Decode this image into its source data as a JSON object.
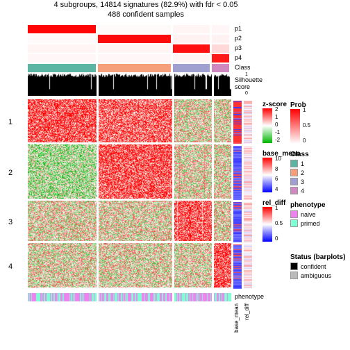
{
  "title_line1": "4 subgroups, 14814 signatures (82.9%) with fdr < 0.05",
  "title_line2": "488 confident samples",
  "title_fontsize": 11,
  "heatmap": {
    "type": "heatmap",
    "row_groups": [
      1,
      2,
      3,
      4
    ],
    "row_group_heights": [
      62,
      78,
      58,
      64
    ],
    "col_groups": [
      1,
      2,
      3,
      4
    ],
    "col_group_widths": [
      99,
      106,
      54,
      25
    ],
    "gap": 3,
    "zscore_colors": {
      "low": "#00b400",
      "mid": "#ffffff",
      "high": "#ff0000",
      "range": [
        -2,
        2
      ]
    }
  },
  "top_annotations": [
    {
      "name": "p1",
      "label": "p1",
      "type": "prob",
      "values_by_group": [
        0.98,
        0.02,
        0.04,
        0.03
      ]
    },
    {
      "name": "p2",
      "label": "p2",
      "type": "prob",
      "values_by_group": [
        0.02,
        0.96,
        0.05,
        0.05
      ]
    },
    {
      "name": "p3",
      "label": "p3",
      "type": "prob",
      "values_by_group": [
        0.04,
        0.04,
        0.94,
        0.15
      ]
    },
    {
      "name": "p4",
      "label": "p4",
      "type": "prob",
      "values_by_group": [
        0.03,
        0.03,
        0.04,
        0.9
      ]
    },
    {
      "name": "Class",
      "label": "Class",
      "type": "class"
    },
    {
      "name": "Silhouette",
      "label": "Silhouette\nscore",
      "type": "silhouette",
      "height": 32,
      "axis": [
        "1",
        "0"
      ]
    }
  ],
  "side_annotations": [
    {
      "name": "base_mean",
      "label": "base_mean",
      "colors": {
        "low": "#0000ff",
        "mid": "#ffffff",
        "high": "#ff0000"
      }
    },
    {
      "name": "rel_diff",
      "label": "rel_diff",
      "colors": {
        "low": "#0000ff",
        "mid": "#ffffff",
        "high": "#ff0000"
      }
    }
  ],
  "bottom_annotation": {
    "name": "phenotype",
    "label": "phenotype",
    "pattern": [
      1,
      1,
      2,
      1,
      2,
      1,
      1,
      1,
      2,
      2,
      2,
      1,
      2,
      1,
      2,
      2,
      1,
      1,
      2,
      1,
      2,
      2,
      1,
      1,
      2,
      2,
      1,
      2,
      1,
      2,
      2,
      1,
      2,
      2,
      1,
      1,
      1,
      2,
      1,
      2,
      2,
      1,
      2,
      2,
      1,
      1
    ]
  },
  "mid_legends": [
    {
      "title": "z-score",
      "gradient": [
        "#ff0000",
        "#ffffff",
        "#00b400"
      ],
      "ticks": [
        "2",
        "1",
        "0",
        "-1",
        "-2"
      ]
    },
    {
      "title": "base_mean",
      "gradient": [
        "#ff0000",
        "#ffffff",
        "#0000ff"
      ],
      "ticks": [
        "10",
        "8",
        "6",
        "4"
      ]
    },
    {
      "title": "rel_diff",
      "gradient": [
        "#ff0000",
        "#ffffff",
        "#0000ff"
      ],
      "ticks": [
        "1",
        "0.5",
        "0"
      ]
    }
  ],
  "right_legends": [
    {
      "title": "Prob",
      "type": "gradient",
      "gradient": [
        "#ff0000",
        "#ffffff"
      ],
      "ticks": [
        "1",
        "0.5",
        "0"
      ]
    },
    {
      "title": "Class",
      "type": "items",
      "items": [
        {
          "label": "1",
          "color": "#5bb5a2"
        },
        {
          "label": "2",
          "color": "#f5a07a"
        },
        {
          "label": "3",
          "color": "#a0a0d0"
        },
        {
          "label": "4",
          "color": "#d088c0"
        }
      ]
    },
    {
      "title": "phenotype",
      "type": "items",
      "items": [
        {
          "label": "naive",
          "color": "#ee82ee"
        },
        {
          "label": "primed",
          "color": "#7fffd4"
        }
      ]
    },
    {
      "title": "Status (barplots)",
      "type": "items",
      "items": [
        {
          "label": "confident",
          "color": "#000000"
        },
        {
          "label": "ambiguous",
          "color": "#bbbbbb"
        }
      ]
    }
  ],
  "colors": {
    "class": [
      "#5bb5a2",
      "#f5a07a",
      "#a0a0d0",
      "#d088c0"
    ],
    "phenotype": [
      "#ee82ee",
      "#7fffd4"
    ],
    "prob_high": "#ff0000",
    "prob_low": "#ffffff",
    "silhouette_bar": "#000000",
    "background": "#ffffff"
  }
}
